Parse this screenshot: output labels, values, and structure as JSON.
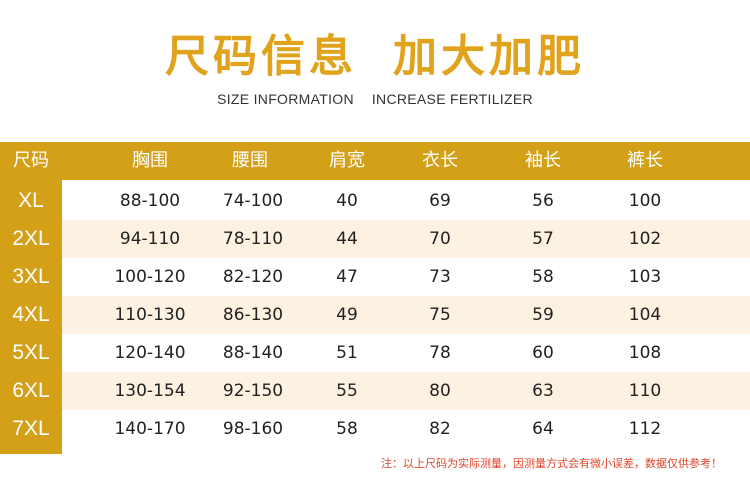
{
  "title": {
    "part1": "尺码信息",
    "part2": "加大加肥"
  },
  "subtitle": {
    "part1": "SIZE INFORMATION",
    "part2": "INCREASE FERTILIZER"
  },
  "colors": {
    "gold": "#d4a018",
    "title_gold": "#e0a31b",
    "stripe": "#fdf1e1",
    "note_red": "#e0432b"
  },
  "table": {
    "headers": [
      "尺码",
      "胸围",
      "腰围",
      "肩宽",
      "衣长",
      "袖长",
      "裤长"
    ],
    "rows": [
      {
        "size": "XL",
        "chest": "88-100",
        "waist": "74-100",
        "shoulder": "40",
        "length": "69",
        "sleeve": "56",
        "pants": "100"
      },
      {
        "size": "2XL",
        "chest": "94-110",
        "waist": "78-110",
        "shoulder": "44",
        "length": "70",
        "sleeve": "57",
        "pants": "102"
      },
      {
        "size": "3XL",
        "chest": "100-120",
        "waist": "82-120",
        "shoulder": "47",
        "length": "73",
        "sleeve": "58",
        "pants": "103"
      },
      {
        "size": "4XL",
        "chest": "110-130",
        "waist": "86-130",
        "shoulder": "49",
        "length": "75",
        "sleeve": "59",
        "pants": "104"
      },
      {
        "size": "5XL",
        "chest": "120-140",
        "waist": "88-140",
        "shoulder": "51",
        "length": "78",
        "sleeve": "60",
        "pants": "108"
      },
      {
        "size": "6XL",
        "chest": "130-154",
        "waist": "92-150",
        "shoulder": "55",
        "length": "80",
        "sleeve": "63",
        "pants": "110"
      },
      {
        "size": "7XL",
        "chest": "140-170",
        "waist": "98-160",
        "shoulder": "58",
        "length": "82",
        "sleeve": "64",
        "pants": "112"
      }
    ]
  },
  "note": "注：以上尺码为实际测量，因测量方式会有微小误差，数据仅供参考！"
}
